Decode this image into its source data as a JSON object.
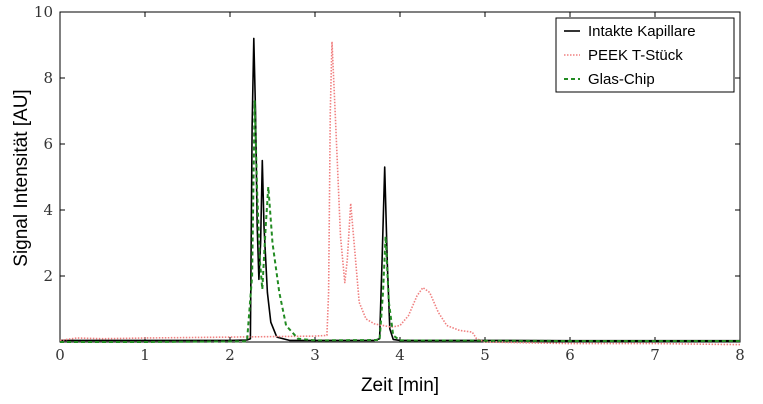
{
  "chart_data": {
    "type": "line",
    "xlabel": "Zeit [min]",
    "ylabel": "Signal Intensität [AU]",
    "xlim": [
      0,
      8
    ],
    "ylim": [
      0,
      10
    ],
    "x_ticks": [
      "0",
      "1",
      "2",
      "3",
      "4",
      "5",
      "6",
      "7",
      "8"
    ],
    "y_ticks": [
      "2",
      "4",
      "6",
      "8",
      "10"
    ],
    "legend_position": "top-right",
    "grid": false,
    "series": [
      {
        "name": "Intakte Kapillare",
        "color": "#000000",
        "style": "solid",
        "points": [
          [
            0,
            0.05
          ],
          [
            1,
            0.05
          ],
          [
            2,
            0.05
          ],
          [
            2.2,
            0.06
          ],
          [
            2.24,
            0.1
          ],
          [
            2.26,
            6.5
          ],
          [
            2.28,
            9.2
          ],
          [
            2.3,
            7.0
          ],
          [
            2.32,
            3.5
          ],
          [
            2.34,
            1.9
          ],
          [
            2.36,
            3.0
          ],
          [
            2.38,
            5.5
          ],
          [
            2.4,
            3.5
          ],
          [
            2.44,
            1.5
          ],
          [
            2.48,
            0.6
          ],
          [
            2.55,
            0.15
          ],
          [
            2.7,
            0.05
          ],
          [
            3.0,
            0.05
          ],
          [
            3.7,
            0.05
          ],
          [
            3.76,
            0.1
          ],
          [
            3.79,
            2.5
          ],
          [
            3.82,
            5.3
          ],
          [
            3.85,
            2.4
          ],
          [
            3.88,
            0.4
          ],
          [
            3.92,
            0.08
          ],
          [
            4.0,
            0.05
          ],
          [
            5,
            0.05
          ],
          [
            6,
            0.04
          ],
          [
            7,
            0.04
          ],
          [
            8,
            0.04
          ]
        ]
      },
      {
        "name": "PEEK T-Stück",
        "color": "#f08080",
        "style": "dotted",
        "points": [
          [
            0,
            0.05
          ],
          [
            0.2,
            0.12
          ],
          [
            0.5,
            0.1
          ],
          [
            1,
            0.12
          ],
          [
            2,
            0.15
          ],
          [
            3.0,
            0.18
          ],
          [
            3.14,
            0.2
          ],
          [
            3.16,
            1.5
          ],
          [
            3.18,
            7.0
          ],
          [
            3.2,
            9.1
          ],
          [
            3.24,
            6.8
          ],
          [
            3.3,
            3.2
          ],
          [
            3.35,
            1.8
          ],
          [
            3.38,
            2.5
          ],
          [
            3.42,
            4.2
          ],
          [
            3.46,
            3.0
          ],
          [
            3.52,
            1.2
          ],
          [
            3.6,
            0.7
          ],
          [
            3.7,
            0.55
          ],
          [
            3.9,
            0.45
          ],
          [
            4.0,
            0.5
          ],
          [
            4.1,
            0.8
          ],
          [
            4.2,
            1.4
          ],
          [
            4.27,
            1.65
          ],
          [
            4.35,
            1.5
          ],
          [
            4.45,
            0.9
          ],
          [
            4.55,
            0.5
          ],
          [
            4.7,
            0.35
          ],
          [
            4.85,
            0.3
          ],
          [
            4.9,
            0.1
          ],
          [
            5.0,
            0.0
          ],
          [
            6,
            -0.05
          ],
          [
            7,
            -0.05
          ],
          [
            8,
            -0.08
          ]
        ]
      },
      {
        "name": "Glas-Chip",
        "color": "#228b22",
        "style": "dashed",
        "points": [
          [
            0,
            0.0
          ],
          [
            1,
            0.0
          ],
          [
            2.2,
            0.02
          ],
          [
            2.26,
            2.0
          ],
          [
            2.29,
            7.3
          ],
          [
            2.32,
            4.5
          ],
          [
            2.35,
            2.5
          ],
          [
            2.38,
            1.6
          ],
          [
            2.42,
            3.5
          ],
          [
            2.45,
            4.7
          ],
          [
            2.5,
            3.0
          ],
          [
            2.58,
            1.5
          ],
          [
            2.66,
            0.5
          ],
          [
            2.8,
            0.1
          ],
          [
            3.0,
            0.05
          ],
          [
            3.76,
            0.06
          ],
          [
            3.8,
            1.5
          ],
          [
            3.83,
            3.2
          ],
          [
            3.87,
            1.2
          ],
          [
            3.92,
            0.2
          ],
          [
            4.0,
            0.05
          ],
          [
            5,
            0.04
          ],
          [
            6,
            0.03
          ],
          [
            7,
            0.03
          ],
          [
            8,
            0.03
          ]
        ]
      }
    ]
  }
}
